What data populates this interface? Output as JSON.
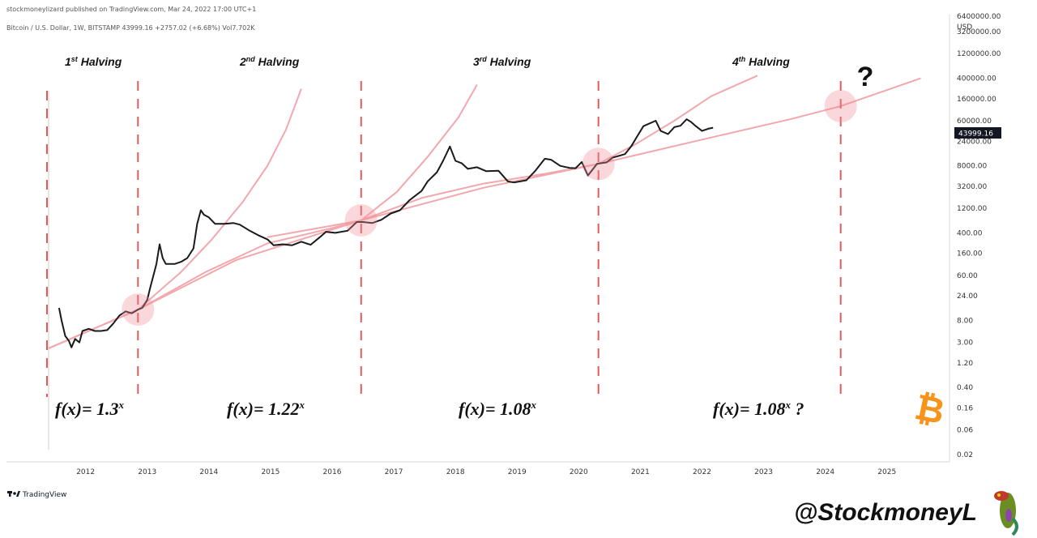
{
  "header": {
    "published": "stockmoneylizard published on TradingView.com, Mar 24, 2022 17:00 UTC+1",
    "legend": "Bitcoin / U.S. Dollar, 1W, BITSTAMP  43999.16  +2757.02 (+6.68%)  Vol7.702K"
  },
  "footer": {
    "tradingview": "TradingView",
    "handle": "@StockmoneyL"
  },
  "chart_data": {
    "type": "line",
    "y_scale": "log",
    "currency_label": "USD",
    "last_price_label": "43999.16",
    "y_ticks": [
      "6400000.00",
      "3200000.00",
      "1200000.00",
      "400000.00",
      "160000.00",
      "60000.00",
      "24000.00",
      "8000.00",
      "3200.00",
      "1200.00",
      "400.00",
      "160.00",
      "60.00",
      "24.00",
      "8.00",
      "3.00",
      "1.20",
      "0.40",
      "0.16",
      "0.06",
      "0.02"
    ],
    "x_ticks": [
      "2012",
      "2013",
      "2014",
      "2015",
      "2016",
      "2017",
      "2018",
      "2019",
      "2020",
      "2021",
      "2022",
      "2023",
      "2024",
      "2025"
    ],
    "ylim": [
      0.02,
      6400000
    ],
    "xlim": [
      2011.45,
      2025.75
    ],
    "halvings": [
      {
        "label": "1st Halving",
        "year": 2012.9
      },
      {
        "label": "2nd Halving",
        "year": 2016.52
      },
      {
        "label": "3rd Halving",
        "year": 2020.37
      },
      {
        "label": "4th Halving",
        "year": 2024.3,
        "marker": "?"
      }
    ],
    "halving_titles": [
      {
        "base": "1",
        "sup": "st",
        "rest": " Halving"
      },
      {
        "base": "2",
        "sup": "nd",
        "rest": " Halving"
      },
      {
        "base": "3",
        "sup": "rd",
        "rest": " Halving"
      },
      {
        "base": "4",
        "sup": "th",
        "rest": " Halving"
      }
    ],
    "formulas": [
      {
        "base": "f(x)= 1.3",
        "sup": "x",
        "suffix": ""
      },
      {
        "base": "f(x)= 1.22",
        "sup": "x",
        "suffix": ""
      },
      {
        "base": "f(x)= 1.08",
        "sup": "x",
        "suffix": ""
      },
      {
        "base": "f(x)= 1.08",
        "sup": "x",
        "suffix": " ?"
      }
    ],
    "series": [
      {
        "values": [
          [
            2011.62,
            14
          ],
          [
            2011.66,
            8
          ],
          [
            2011.72,
            4
          ],
          [
            2011.78,
            3.2
          ],
          [
            2011.82,
            2.4
          ],
          [
            2011.88,
            3.5
          ],
          [
            2011.95,
            3
          ],
          [
            2012.0,
            5
          ],
          [
            2012.1,
            5.5
          ],
          [
            2012.2,
            5
          ],
          [
            2012.3,
            5
          ],
          [
            2012.4,
            5.2
          ],
          [
            2012.5,
            7
          ],
          [
            2012.6,
            10
          ],
          [
            2012.7,
            12
          ],
          [
            2012.8,
            11
          ],
          [
            2012.9,
            13
          ],
          [
            2012.97,
            14
          ],
          [
            2013.05,
            20
          ],
          [
            2013.1,
            35
          ],
          [
            2013.2,
            100
          ],
          [
            2013.25,
            240
          ],
          [
            2013.3,
            130
          ],
          [
            2013.35,
            100
          ],
          [
            2013.5,
            100
          ],
          [
            2013.6,
            110
          ],
          [
            2013.7,
            130
          ],
          [
            2013.8,
            200
          ],
          [
            2013.86,
            600
          ],
          [
            2013.92,
            1100
          ],
          [
            2013.97,
            900
          ],
          [
            2014.05,
            800
          ],
          [
            2014.15,
            600
          ],
          [
            2014.3,
            600
          ],
          [
            2014.45,
            620
          ],
          [
            2014.55,
            580
          ],
          [
            2014.7,
            450
          ],
          [
            2014.85,
            360
          ],
          [
            2015.0,
            300
          ],
          [
            2015.1,
            230
          ],
          [
            2015.25,
            240
          ],
          [
            2015.4,
            230
          ],
          [
            2015.55,
            270
          ],
          [
            2015.7,
            235
          ],
          [
            2015.85,
            330
          ],
          [
            2015.95,
            420
          ],
          [
            2016.1,
            400
          ],
          [
            2016.3,
            440
          ],
          [
            2016.45,
            650
          ],
          [
            2016.55,
            650
          ],
          [
            2016.7,
            620
          ],
          [
            2016.85,
            720
          ],
          [
            2017.0,
            950
          ],
          [
            2017.15,
            1100
          ],
          [
            2017.3,
            1700
          ],
          [
            2017.5,
            2600
          ],
          [
            2017.6,
            4000
          ],
          [
            2017.75,
            6000
          ],
          [
            2017.85,
            10000
          ],
          [
            2017.96,
            19000
          ],
          [
            2018.05,
            10000
          ],
          [
            2018.15,
            9000
          ],
          [
            2018.25,
            7000
          ],
          [
            2018.4,
            7500
          ],
          [
            2018.55,
            6300
          ],
          [
            2018.75,
            6400
          ],
          [
            2018.9,
            4000
          ],
          [
            2019.0,
            3800
          ],
          [
            2019.2,
            4200
          ],
          [
            2019.35,
            6500
          ],
          [
            2019.5,
            11000
          ],
          [
            2019.6,
            10500
          ],
          [
            2019.75,
            8000
          ],
          [
            2019.9,
            7300
          ],
          [
            2020.0,
            7200
          ],
          [
            2020.1,
            9500
          ],
          [
            2020.2,
            5200
          ],
          [
            2020.35,
            8800
          ],
          [
            2020.5,
            9300
          ],
          [
            2020.6,
            11500
          ],
          [
            2020.8,
            13500
          ],
          [
            2020.9,
            19000
          ],
          [
            2021.0,
            30000
          ],
          [
            2021.1,
            47000
          ],
          [
            2021.3,
            60000
          ],
          [
            2021.38,
            38000
          ],
          [
            2021.5,
            33000
          ],
          [
            2021.6,
            45000
          ],
          [
            2021.7,
            48000
          ],
          [
            2021.8,
            64000
          ],
          [
            2021.87,
            57000
          ],
          [
            2021.95,
            47000
          ],
          [
            2022.05,
            38000
          ],
          [
            2022.15,
            42000
          ],
          [
            2022.23,
            43999
          ]
        ]
      }
    ]
  }
}
